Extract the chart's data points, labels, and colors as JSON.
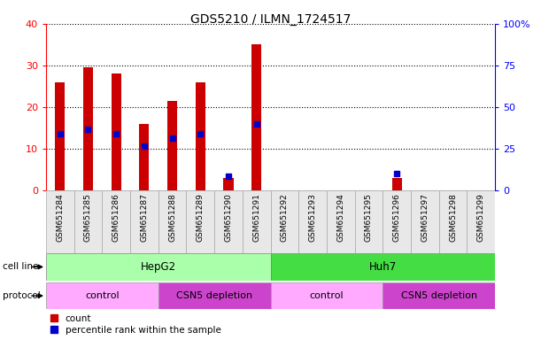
{
  "title": "GDS5210 / ILMN_1724517",
  "samples": [
    "GSM651284",
    "GSM651285",
    "GSM651286",
    "GSM651287",
    "GSM651288",
    "GSM651289",
    "GSM651290",
    "GSM651291",
    "GSM651292",
    "GSM651293",
    "GSM651294",
    "GSM651295",
    "GSM651296",
    "GSM651297",
    "GSM651298",
    "GSM651299"
  ],
  "counts": [
    26.0,
    29.5,
    28.0,
    16.0,
    21.5,
    26.0,
    3.0,
    35.0,
    0,
    0,
    0,
    0,
    3.0,
    0,
    0,
    0
  ],
  "percentile_ranks": [
    34.0,
    36.5,
    34.0,
    26.5,
    31.5,
    34.0,
    8.5,
    40.0,
    0,
    0,
    0,
    0,
    10.0,
    0,
    0,
    0
  ],
  "ylim_left": [
    0,
    40
  ],
  "ylim_right": [
    0,
    100
  ],
  "yticks_left": [
    0,
    10,
    20,
    30,
    40
  ],
  "yticks_right": [
    0,
    25,
    50,
    75,
    100
  ],
  "ytick_labels_right": [
    "0",
    "25",
    "50",
    "75",
    "100%"
  ],
  "bar_color": "#CC0000",
  "pct_color": "#0000CC",
  "cell_line_hepg2_color": "#AAFFAA",
  "cell_line_huh7_color": "#44DD44",
  "protocol_control_color": "#FFAAFF",
  "protocol_csn5_color": "#CC44CC",
  "cell_line_label": "cell line",
  "protocol_label": "protocol",
  "hepg2_label": "HepG2",
  "huh7_label": "Huh7",
  "control_label": "control",
  "csn5_label": "CSN5 depletion",
  "legend_count": "count",
  "legend_pct": "percentile rank within the sample"
}
